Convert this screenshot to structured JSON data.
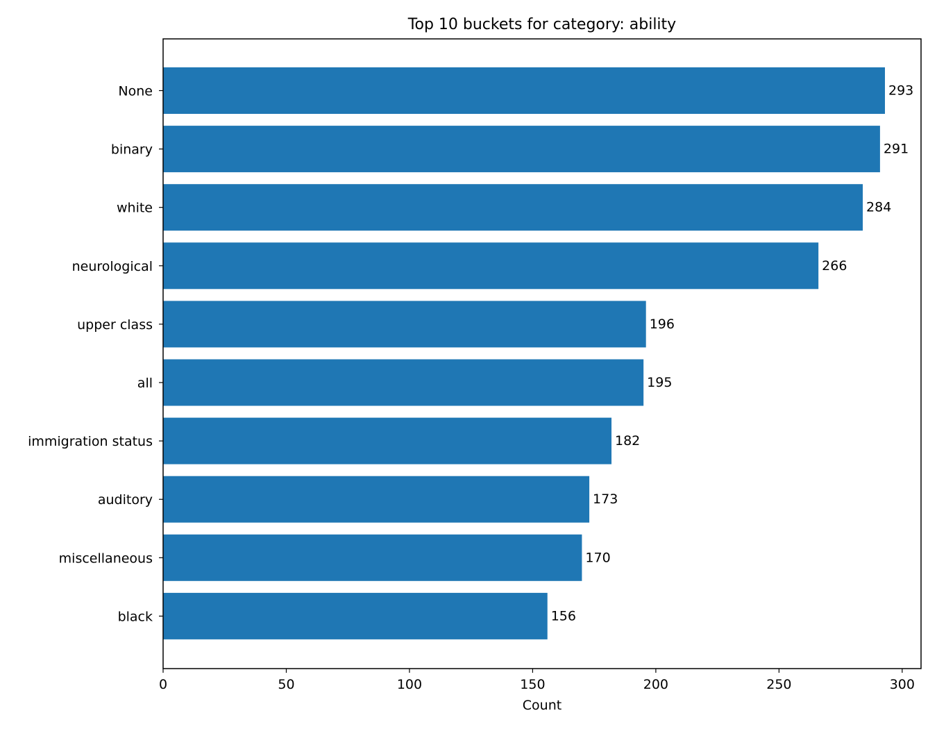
{
  "chart_data": {
    "type": "bar",
    "orientation": "horizontal",
    "title": "Top 10 buckets for category: ability",
    "xlabel": "Count",
    "ylabel": "",
    "categories": [
      "None",
      "binary",
      "white",
      "neurological",
      "upper class",
      "all",
      "immigration status",
      "auditory",
      "miscellaneous",
      "black"
    ],
    "values": [
      293,
      291,
      284,
      266,
      196,
      195,
      182,
      173,
      170,
      156
    ],
    "xlim": [
      0,
      307.65
    ],
    "xticks": [
      "0",
      "50",
      "100",
      "150",
      "200",
      "250",
      "300"
    ],
    "bar_color": "#1f77b4",
    "grid": false,
    "legend": "none"
  }
}
